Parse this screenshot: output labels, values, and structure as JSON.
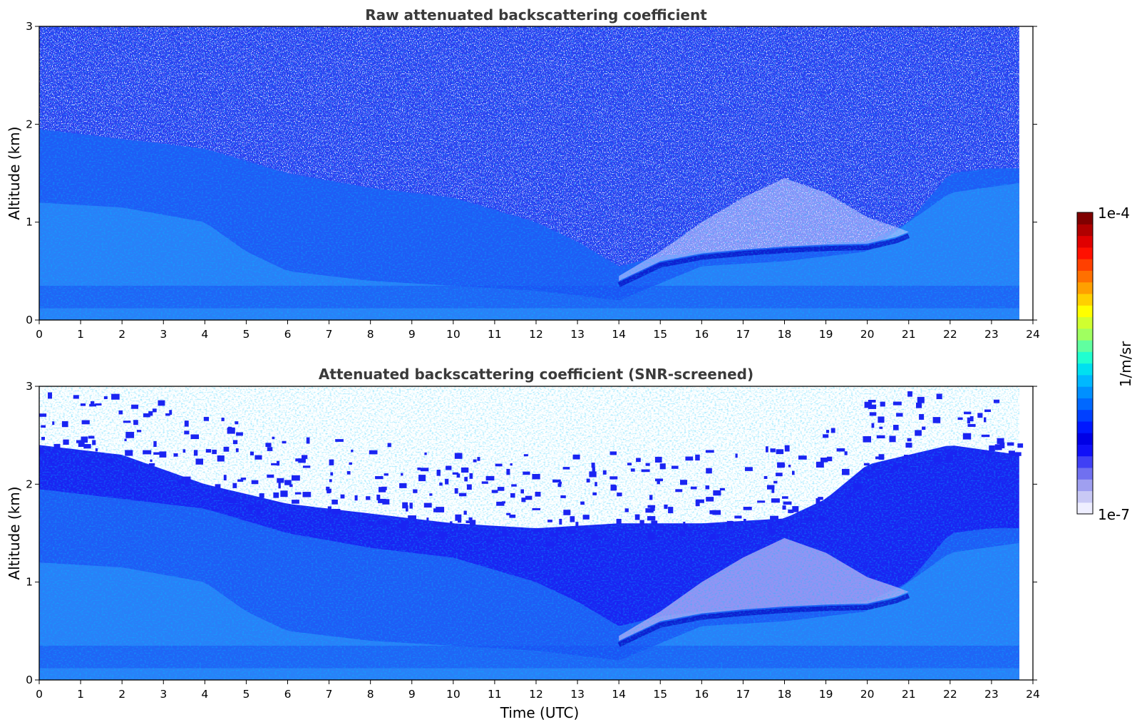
{
  "chart_data": [
    {
      "type": "heatmap",
      "title": "Raw attenuated backscattering coefficient",
      "xlabel": "",
      "ylabel": "Altitude (km)",
      "xlim": [
        0,
        24
      ],
      "ylim": [
        0,
        3
      ],
      "xticks": [
        "0",
        "1",
        "2",
        "3",
        "4",
        "5",
        "6",
        "7",
        "8",
        "9",
        "10",
        "11",
        "12",
        "13",
        "14",
        "15",
        "16",
        "17",
        "18",
        "19",
        "20",
        "21",
        "22",
        "23",
        "24"
      ],
      "yticks": [
        "0",
        "1",
        "2",
        "3"
      ],
      "data_end_time": 23.67,
      "colorscale": "log",
      "field": {
        "description_key": "boundary layer structure",
        "aerosol_layer_top_km": [
          {
            "t": 0,
            "z": 1.95
          },
          {
            "t": 2,
            "z": 1.85
          },
          {
            "t": 4,
            "z": 1.75
          },
          {
            "t": 6,
            "z": 1.5
          },
          {
            "t": 8,
            "z": 1.35
          },
          {
            "t": 10,
            "z": 1.25
          },
          {
            "t": 12,
            "z": 1.0
          },
          {
            "t": 13,
            "z": 0.8
          },
          {
            "t": 14,
            "z": 0.55
          },
          {
            "t": 15,
            "z": 0.65
          },
          {
            "t": 16,
            "z": 0.7
          },
          {
            "t": 17,
            "z": 0.72
          },
          {
            "t": 18,
            "z": 0.75
          },
          {
            "t": 19,
            "z": 0.78
          },
          {
            "t": 20,
            "z": 0.8
          },
          {
            "t": 21,
            "z": 1.0
          },
          {
            "t": 22,
            "z": 1.5
          },
          {
            "t": 23,
            "z": 1.55
          },
          {
            "t": 23.67,
            "z": 1.55
          }
        ],
        "noise": "high above layer"
      }
    },
    {
      "type": "heatmap",
      "title": "Attenuated backscattering coefficient (SNR-screened)",
      "xlabel": "Time (UTC)",
      "ylabel": "Altitude (km)",
      "xlim": [
        0,
        24
      ],
      "ylim": [
        0,
        3
      ],
      "xticks": [
        "0",
        "1",
        "2",
        "3",
        "4",
        "5",
        "6",
        "7",
        "8",
        "9",
        "10",
        "11",
        "12",
        "13",
        "14",
        "15",
        "16",
        "17",
        "18",
        "19",
        "20",
        "21",
        "22",
        "23",
        "24"
      ],
      "yticks": [
        "0",
        "1",
        "2",
        "3"
      ],
      "data_end_time": 23.67,
      "colorscale": "log",
      "field": {
        "screening": "low-SNR pixels removed",
        "signal_top_km": [
          {
            "t": 0,
            "z": 2.4
          },
          {
            "t": 2,
            "z": 2.3
          },
          {
            "t": 4,
            "z": 2.0
          },
          {
            "t": 6,
            "z": 1.8
          },
          {
            "t": 8,
            "z": 1.7
          },
          {
            "t": 10,
            "z": 1.6
          },
          {
            "t": 12,
            "z": 1.55
          },
          {
            "t": 14,
            "z": 1.6
          },
          {
            "t": 16,
            "z": 1.6
          },
          {
            "t": 18,
            "z": 1.65
          },
          {
            "t": 19,
            "z": 1.85
          },
          {
            "t": 20,
            "z": 2.2
          },
          {
            "t": 22,
            "z": 2.4
          },
          {
            "t": 23.67,
            "z": 2.3
          }
        ]
      }
    }
  ],
  "colorbar": {
    "label": "1/m/sr",
    "max_label": "1e-4",
    "min_label": "1e-7",
    "colors": [
      "#eeeeff",
      "#c9c9f5",
      "#9f9ff0",
      "#7070f0",
      "#4040f5",
      "#1010f8",
      "#0000e6",
      "#0018ff",
      "#0040ff",
      "#0068ff",
      "#0090ff",
      "#00b8ff",
      "#00e0f0",
      "#20ffd0",
      "#60ffa0",
      "#a0ff60",
      "#d0ff30",
      "#ffff00",
      "#ffd000",
      "#ffa000",
      "#ff7000",
      "#ff4000",
      "#ff1000",
      "#e00000",
      "#b00000",
      "#800000"
    ]
  }
}
